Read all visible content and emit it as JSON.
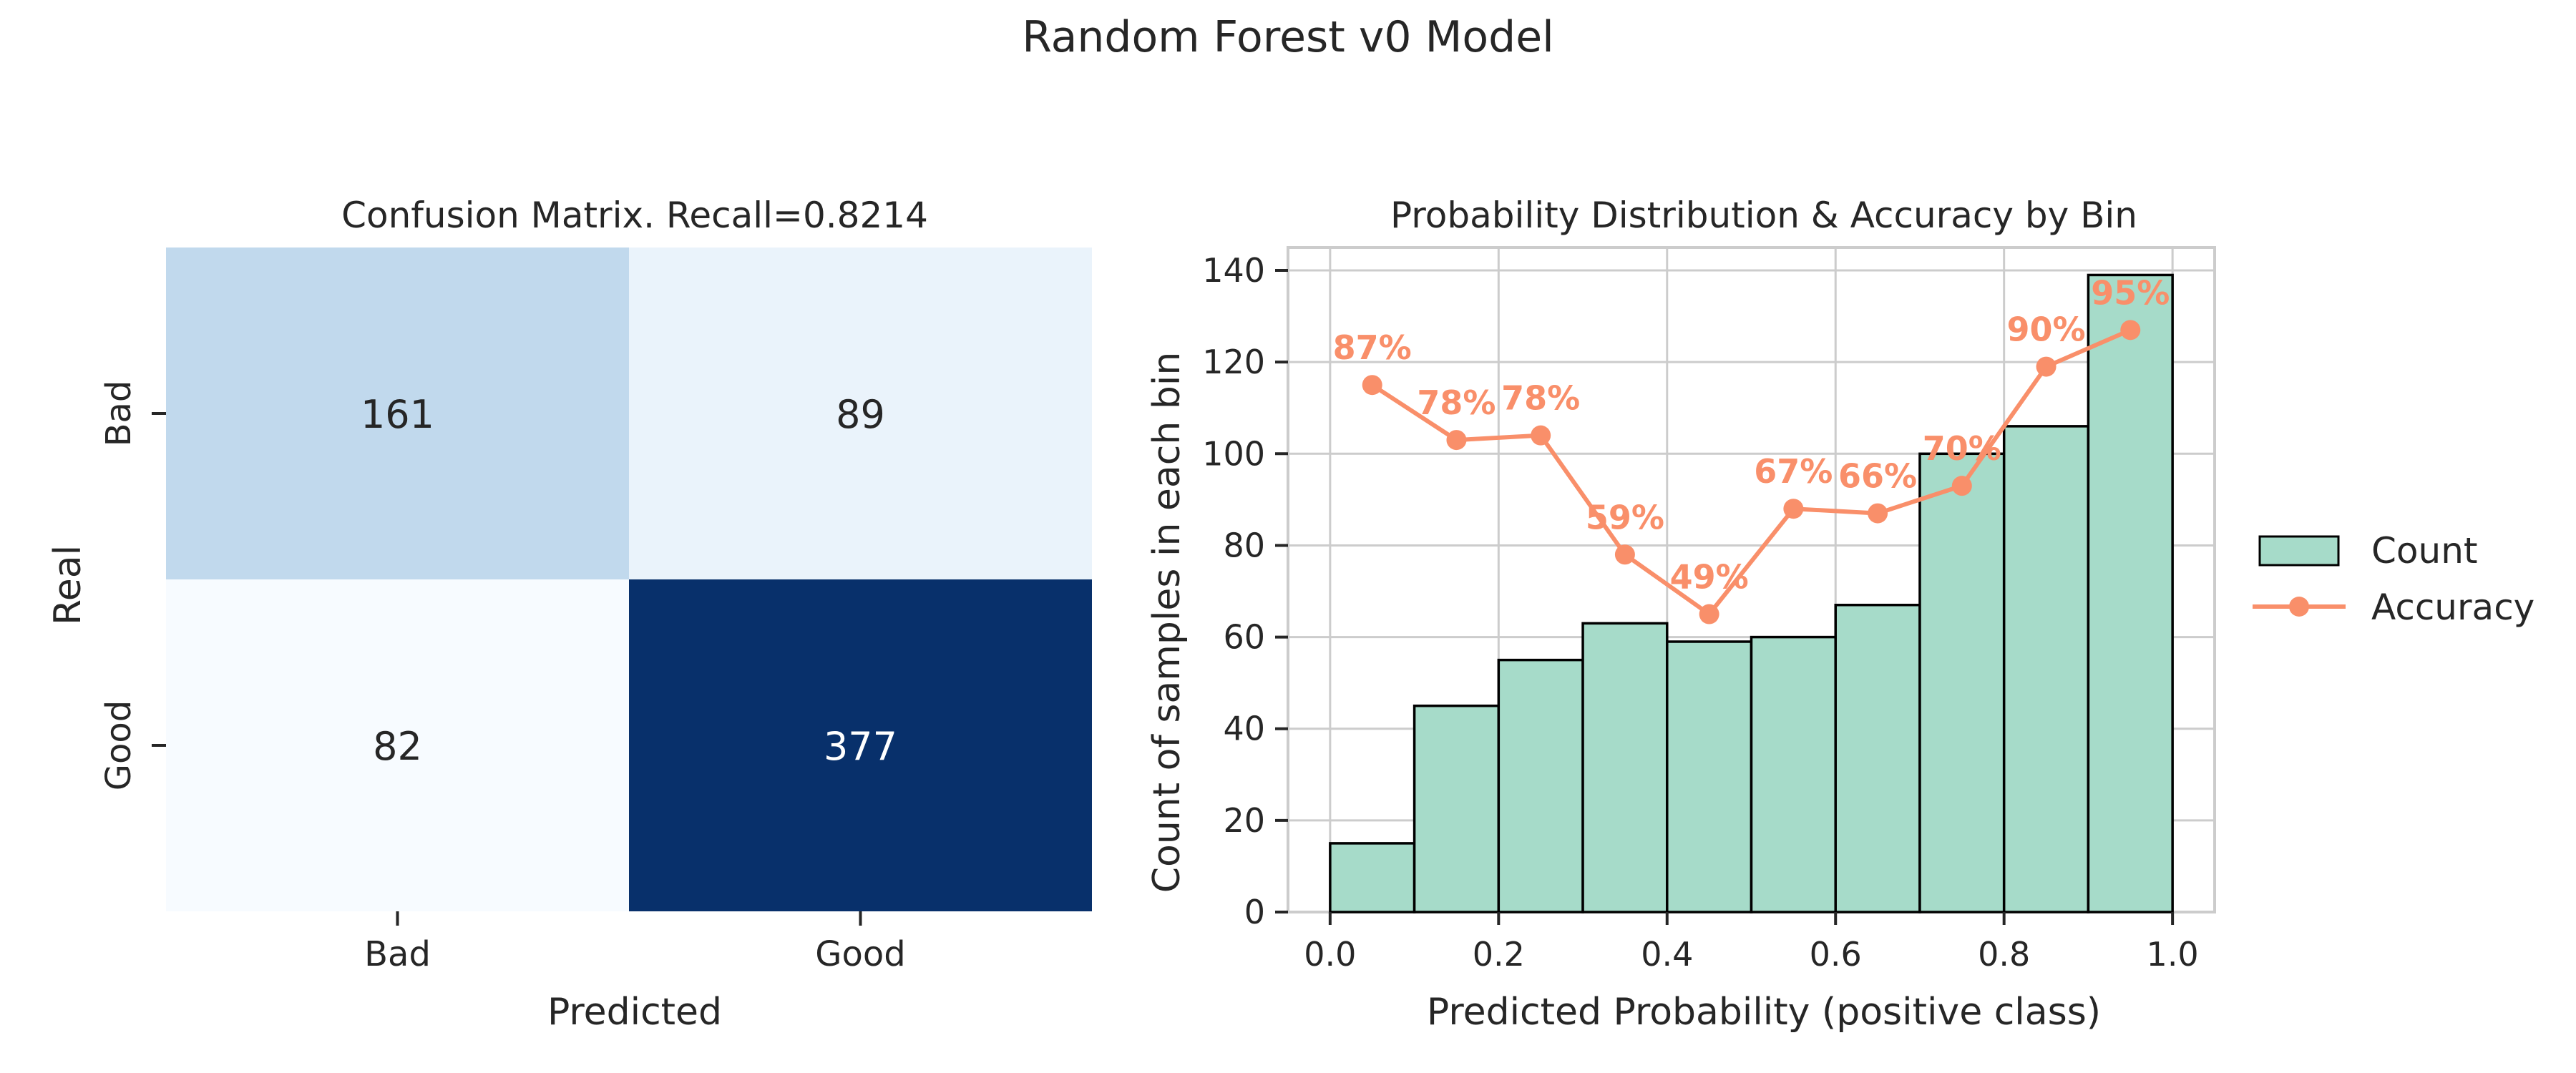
{
  "suptitle": "Random Forest v0 Model",
  "colors": {
    "cm_low": "#f7fbff",
    "cm_high": "#08306b",
    "bar_fill": "#a6dbc9",
    "bar_edge": "#000000",
    "line": "#f98f6a",
    "grid": "#cccccc",
    "axis_text": "#262626"
  },
  "chart_data": [
    {
      "type": "heatmap",
      "title": "Confusion Matrix. Recall=0.8214",
      "xlabel": "Predicted",
      "ylabel": "Real",
      "x_categories": [
        "Bad",
        "Good"
      ],
      "y_categories": [
        "Bad",
        "Good"
      ],
      "values": [
        [
          161,
          89
        ],
        [
          82,
          377
        ]
      ],
      "colormap": "Blues",
      "colorbar": false
    },
    {
      "type": "bar",
      "title": "Probability Distribution & Accuracy by Bin",
      "xlabel": "Predicted Probability (positive class)",
      "ylabel": "Count of samples in each bin",
      "xlim": [
        -0.05,
        1.05
      ],
      "ylim": [
        0,
        145
      ],
      "x_ticks": [
        0.0,
        0.2,
        0.4,
        0.6,
        0.8,
        1.0
      ],
      "x_tick_labels": [
        "0.0",
        "0.2",
        "0.4",
        "0.6",
        "0.8",
        "1.0"
      ],
      "y_ticks": [
        0,
        20,
        40,
        60,
        80,
        100,
        120,
        140
      ],
      "grid": true,
      "legend_position": "right",
      "bin_edges": [
        0.0,
        0.1,
        0.2,
        0.3,
        0.4,
        0.5,
        0.6,
        0.7,
        0.8,
        0.9,
        1.0
      ],
      "series": [
        {
          "name": "Count",
          "type": "bar",
          "values": [
            15,
            45,
            55,
            63,
            59,
            60,
            67,
            100,
            106,
            139
          ]
        },
        {
          "name": "Accuracy",
          "type": "line",
          "x": [
            0.05,
            0.15,
            0.25,
            0.35,
            0.45,
            0.55,
            0.65,
            0.75,
            0.85,
            0.95
          ],
          "values": [
            115,
            103,
            104,
            78,
            65,
            88,
            87,
            93,
            119,
            127
          ],
          "labels": [
            "87%",
            "78%",
            "78%",
            "59%",
            "49%",
            "67%",
            "66%",
            "70%",
            "90%",
            "95%"
          ]
        }
      ]
    }
  ]
}
